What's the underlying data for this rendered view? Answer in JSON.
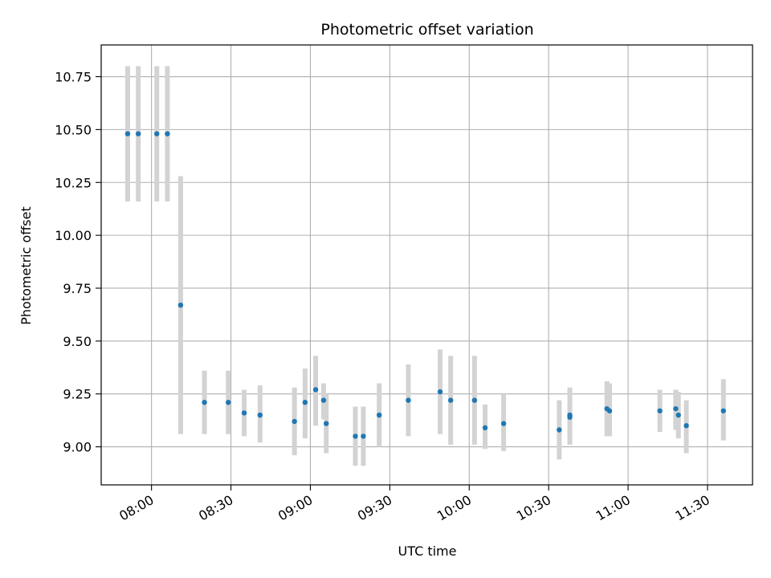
{
  "chart_data": {
    "type": "scatter",
    "title": "Photometric offset variation",
    "xlabel": "UTC time",
    "ylabel": "Photometric offset",
    "x_unit": "UTC time (HH:MM)",
    "xlim": [
      "07:41",
      "11:47"
    ],
    "ylim": [
      8.82,
      10.9
    ],
    "x_ticks": [
      "08:00",
      "08:30",
      "09:00",
      "09:30",
      "10:00",
      "10:30",
      "11:00",
      "11:30"
    ],
    "y_ticks": [
      9.0,
      9.25,
      9.5,
      9.75,
      10.0,
      10.25,
      10.5,
      10.75
    ],
    "y_tick_labels": [
      "9.00",
      "9.25",
      "9.50",
      "9.75",
      "10.00",
      "10.25",
      "10.50",
      "10.75"
    ],
    "grid": true,
    "marker_color": "#1f77b4",
    "errorbar_color": "#d3d3d3",
    "points": [
      {
        "t": "07:51",
        "y": 10.48,
        "lo": 10.16,
        "hi": 10.8
      },
      {
        "t": "07:55",
        "y": 10.48,
        "lo": 10.16,
        "hi": 10.8
      },
      {
        "t": "08:02",
        "y": 10.48,
        "lo": 10.16,
        "hi": 10.8
      },
      {
        "t": "08:06",
        "y": 10.48,
        "lo": 10.16,
        "hi": 10.8
      },
      {
        "t": "08:11",
        "y": 9.67,
        "lo": 9.06,
        "hi": 10.28
      },
      {
        "t": "08:20",
        "y": 9.21,
        "lo": 9.06,
        "hi": 9.36
      },
      {
        "t": "08:29",
        "y": 9.21,
        "lo": 9.06,
        "hi": 9.36
      },
      {
        "t": "08:35",
        "y": 9.16,
        "lo": 9.05,
        "hi": 9.27
      },
      {
        "t": "08:41",
        "y": 9.15,
        "lo": 9.02,
        "hi": 9.29
      },
      {
        "t": "08:54",
        "y": 9.12,
        "lo": 8.96,
        "hi": 9.28
      },
      {
        "t": "08:58",
        "y": 9.21,
        "lo": 9.04,
        "hi": 9.37
      },
      {
        "t": "09:02",
        "y": 9.27,
        "lo": 9.1,
        "hi": 9.43
      },
      {
        "t": "09:05",
        "y": 9.22,
        "lo": 9.13,
        "hi": 9.3
      },
      {
        "t": "09:06",
        "y": 9.11,
        "lo": 8.97,
        "hi": 9.25
      },
      {
        "t": "09:17",
        "y": 9.05,
        "lo": 8.91,
        "hi": 9.19
      },
      {
        "t": "09:20",
        "y": 9.05,
        "lo": 8.91,
        "hi": 9.19
      },
      {
        "t": "09:26",
        "y": 9.15,
        "lo": 9.0,
        "hi": 9.3
      },
      {
        "t": "09:37",
        "y": 9.22,
        "lo": 9.05,
        "hi": 9.39
      },
      {
        "t": "09:49",
        "y": 9.26,
        "lo": 9.06,
        "hi": 9.46
      },
      {
        "t": "09:53",
        "y": 9.22,
        "lo": 9.01,
        "hi": 9.43
      },
      {
        "t": "10:02",
        "y": 9.22,
        "lo": 9.01,
        "hi": 9.43
      },
      {
        "t": "10:06",
        "y": 9.09,
        "lo": 8.99,
        "hi": 9.2
      },
      {
        "t": "10:13",
        "y": 9.11,
        "lo": 8.98,
        "hi": 9.25
      },
      {
        "t": "10:34",
        "y": 9.08,
        "lo": 8.94,
        "hi": 9.22
      },
      {
        "t": "10:38",
        "y": 9.14,
        "lo": 9.01,
        "hi": 9.27
      },
      {
        "t": "10:38",
        "y": 9.15,
        "lo": 9.02,
        "hi": 9.28
      },
      {
        "t": "10:52",
        "y": 9.18,
        "lo": 9.05,
        "hi": 9.31
      },
      {
        "t": "10:53",
        "y": 9.17,
        "lo": 9.05,
        "hi": 9.3
      },
      {
        "t": "11:12",
        "y": 9.17,
        "lo": 9.07,
        "hi": 9.27
      },
      {
        "t": "11:18",
        "y": 9.18,
        "lo": 9.08,
        "hi": 9.27
      },
      {
        "t": "11:19",
        "y": 9.15,
        "lo": 9.04,
        "hi": 9.26
      },
      {
        "t": "11:22",
        "y": 9.1,
        "lo": 8.97,
        "hi": 9.22
      },
      {
        "t": "11:36",
        "y": 9.17,
        "lo": 9.03,
        "hi": 9.32
      }
    ]
  }
}
